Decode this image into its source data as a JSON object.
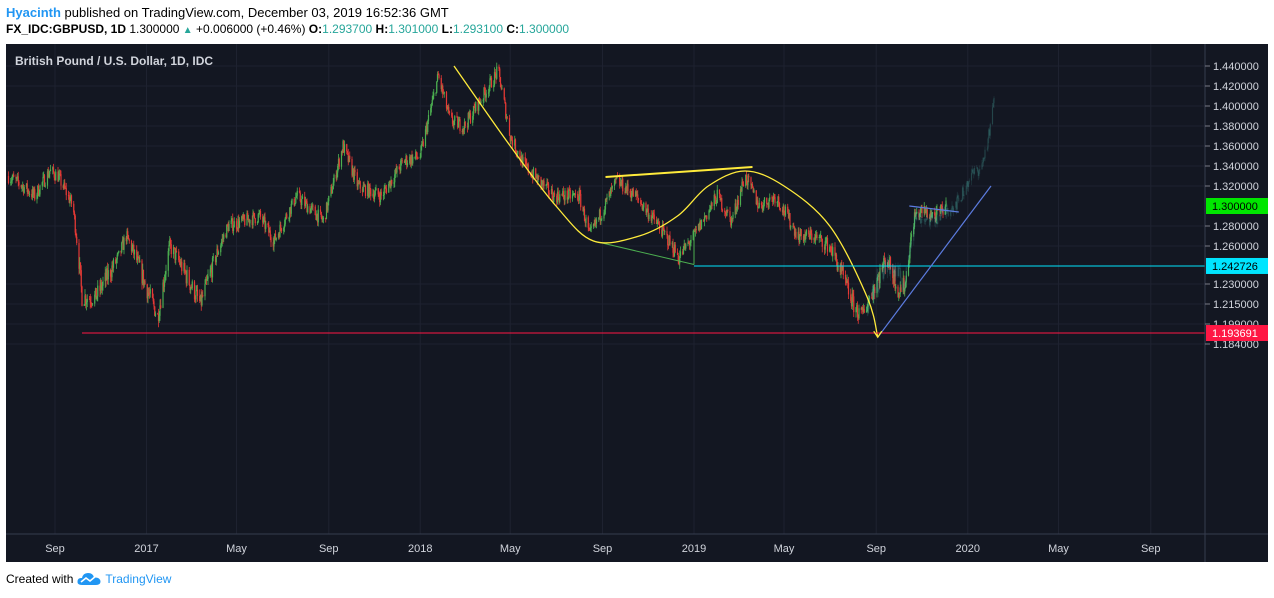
{
  "header": {
    "user": "Hyacinth",
    "published_text": "published on TradingView.com, December 03, 2019 16:52:36 GMT",
    "symbol": "FX_IDC:GBPUSD, 1D",
    "last": "1.300000",
    "change": "+0.006000 (+0.46%)",
    "open_label": "O:",
    "open": "1.293700",
    "high_label": "H:",
    "high": "1.301000",
    "low_label": "L:",
    "low": "1.293100",
    "close_label": "C:",
    "close": "1.300000"
  },
  "footer": {
    "created_with": "Created with",
    "brand": "TradingView"
  },
  "colors": {
    "background": "#131722",
    "bull": "#4caf50",
    "bear": "#e53935",
    "yellow": "#ffeb3b",
    "cyan": "#00e5ff",
    "red_line": "#ff1744",
    "blue_line": "#5c7ce0",
    "green_line": "#4caf50"
  },
  "chart_data": {
    "type": "candlestick",
    "title": "British Pound / U.S. Dollar, 1D, IDC",
    "y_ticks": [
      {
        "value": 1.44,
        "label": "1.440000"
      },
      {
        "value": 1.42,
        "label": "1.420000"
      },
      {
        "value": 1.4,
        "label": "1.400000"
      },
      {
        "value": 1.38,
        "label": "1.380000"
      },
      {
        "value": 1.36,
        "label": "1.360000"
      },
      {
        "value": 1.34,
        "label": "1.340000"
      },
      {
        "value": 1.32,
        "label": "1.320000"
      },
      {
        "value": 1.28,
        "label": "1.280000"
      },
      {
        "value": 1.26,
        "label": "1.260000"
      },
      {
        "value": 1.23,
        "label": "1.230000"
      },
      {
        "value": 1.215,
        "label": "1.215000"
      },
      {
        "value": 1.199,
        "label": "1.199000"
      },
      {
        "value": 1.184,
        "label": "1.184000"
      }
    ],
    "x_ticks": [
      {
        "date": "2016-09",
        "label": "Sep"
      },
      {
        "date": "2017-01",
        "label": "2017"
      },
      {
        "date": "2017-05",
        "label": "May"
      },
      {
        "date": "2017-09",
        "label": "Sep"
      },
      {
        "date": "2018-01",
        "label": "2018"
      },
      {
        "date": "2018-05",
        "label": "May"
      },
      {
        "date": "2018-09",
        "label": "Sep"
      },
      {
        "date": "2019-01",
        "label": "2019"
      },
      {
        "date": "2019-05",
        "label": "May"
      },
      {
        "date": "2019-09",
        "label": "Sep"
      },
      {
        "date": "2020-01",
        "label": "2020"
      },
      {
        "date": "2020-05",
        "label": "May"
      },
      {
        "date": "2020-09",
        "label": "Sep"
      }
    ],
    "price_tags": [
      {
        "value": 1.3,
        "label": "1.300000",
        "color": "#00e600",
        "text_color": "#000000"
      },
      {
        "value": 1.242726,
        "label": "1.242726",
        "color": "#00e5ff",
        "text_color": "#000000"
      },
      {
        "value": 1.193691,
        "label": "1.193691",
        "color": "#ff1744",
        "text_color": "#ffffff"
      }
    ],
    "price_path": [
      [
        "2016-07-01",
        1.33
      ],
      [
        "2016-07-20",
        1.32
      ],
      [
        "2016-08-05",
        1.31
      ],
      [
        "2016-08-25",
        1.335
      ],
      [
        "2016-09-05",
        1.33
      ],
      [
        "2016-09-25",
        1.3
      ],
      [
        "2016-10-07",
        1.22
      ],
      [
        "2016-10-25",
        1.22
      ],
      [
        "2016-11-25",
        1.25
      ],
      [
        "2016-12-05",
        1.27
      ],
      [
        "2016-12-30",
        1.23
      ],
      [
        "2017-01-16",
        1.205
      ],
      [
        "2017-02-01",
        1.26
      ],
      [
        "2017-03-14",
        1.215
      ],
      [
        "2017-04-20",
        1.28
      ],
      [
        "2017-06-01",
        1.29
      ],
      [
        "2017-06-20",
        1.265
      ],
      [
        "2017-07-20",
        1.31
      ],
      [
        "2017-08-25",
        1.285
      ],
      [
        "2017-09-20",
        1.36
      ],
      [
        "2017-10-10",
        1.32
      ],
      [
        "2017-11-10",
        1.31
      ],
      [
        "2017-12-10",
        1.345
      ],
      [
        "2018-01-01",
        1.35
      ],
      [
        "2018-01-25",
        1.43
      ],
      [
        "2018-02-10",
        1.385
      ],
      [
        "2018-03-01",
        1.38
      ],
      [
        "2018-04-15",
        1.435
      ],
      [
        "2018-05-01",
        1.37
      ],
      [
        "2018-05-20",
        1.34
      ],
      [
        "2018-06-28",
        1.31
      ],
      [
        "2018-08-01",
        1.31
      ],
      [
        "2018-08-15",
        1.27
      ],
      [
        "2018-09-20",
        1.325
      ],
      [
        "2018-10-15",
        1.31
      ],
      [
        "2018-11-15",
        1.28
      ],
      [
        "2018-12-12",
        1.25
      ],
      [
        "2019-01-01",
        1.27
      ],
      [
        "2019-02-01",
        1.31
      ],
      [
        "2019-02-20",
        1.285
      ],
      [
        "2019-03-10",
        1.33
      ],
      [
        "2019-03-29",
        1.3
      ],
      [
        "2019-04-20",
        1.31
      ],
      [
        "2019-05-20",
        1.27
      ],
      [
        "2019-06-10",
        1.27
      ],
      [
        "2019-07-01",
        1.26
      ],
      [
        "2019-08-01",
        1.215
      ],
      [
        "2019-08-12",
        1.205
      ],
      [
        "2019-09-15",
        1.25
      ],
      [
        "2019-10-01",
        1.225
      ],
      [
        "2019-10-10",
        1.23
      ],
      [
        "2019-10-22",
        1.29
      ],
      [
        "2019-11-01",
        1.295
      ],
      [
        "2019-11-20",
        1.29
      ],
      [
        "2019-12-03",
        1.3
      ]
    ],
    "drawings": {
      "yellow_curve": [
        [
          "2018-02-15",
          1.44
        ],
        [
          "2018-05-01",
          1.36
        ],
        [
          "2018-07-01",
          1.3
        ],
        [
          "2018-08-20",
          1.265
        ],
        [
          "2018-10-20",
          1.27
        ],
        [
          "2018-12-10",
          1.29
        ],
        [
          "2019-01-20",
          1.32
        ],
        [
          "2019-03-10",
          1.335
        ],
        [
          "2019-05-01",
          1.32
        ],
        [
          "2019-07-01",
          1.28
        ],
        [
          "2019-08-20",
          1.22
        ],
        [
          "2019-09-03",
          1.19
        ]
      ],
      "yellow_resistance": [
        [
          "2018-09-05",
          1.329
        ],
        [
          "2019-03-20",
          1.339
        ]
      ],
      "green_support": [
        [
          "2018-08-20",
          1.265
        ],
        [
          "2019-01-01",
          1.244
        ]
      ],
      "green_vertical": [
        [
          "2019-01-01",
          1.244
        ],
        [
          "2019-01-01",
          1.275
        ]
      ],
      "cyan_level": {
        "start": "2019-01-01",
        "value": 1.242726
      },
      "red_level": {
        "start": "2016-10-07",
        "value": 1.193691
      },
      "blue_trend": [
        [
          "2019-09-03",
          1.19
        ],
        [
          "2020-02-01",
          1.32
        ]
      ],
      "blue_top": [
        [
          "2019-10-15",
          1.3
        ],
        [
          "2019-12-20",
          1.294
        ]
      ],
      "projection": [
        [
          "2019-08-20",
          1.215
        ],
        [
          "2019-09-15",
          1.245
        ],
        [
          "2019-10-10",
          1.23
        ],
        [
          "2019-10-22",
          1.29
        ],
        [
          "2019-11-15",
          1.285
        ],
        [
          "2019-12-20",
          1.305
        ],
        [
          "2020-01-05",
          1.33
        ],
        [
          "2020-01-20",
          1.34
        ],
        [
          "2020-02-01",
          1.38
        ],
        [
          "2020-02-05",
          1.41
        ]
      ]
    }
  }
}
